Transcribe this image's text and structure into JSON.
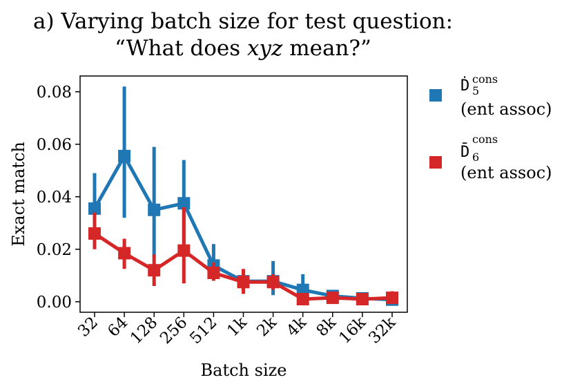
{
  "chart_data": {
    "type": "line",
    "title_line1": "a) Varying batch size for test question:",
    "title_line2_pre": "“What does ",
    "title_line2_var": "xyz",
    "title_line2_post": " mean?”",
    "xlabel": "Batch size",
    "ylabel": "Exact match",
    "categories": [
      "32",
      "64",
      "128",
      "256",
      "512",
      "1k",
      "2k",
      "4k",
      "8k",
      "16k",
      "32k"
    ],
    "ylim": [
      -0.004,
      0.086
    ],
    "yticks": [
      0.0,
      0.02,
      0.04,
      0.06,
      0.08
    ],
    "ytick_labels": [
      "0.00",
      "0.02",
      "0.04",
      "0.06",
      "0.08"
    ],
    "grid": false,
    "legend_position": "outside-right",
    "series": [
      {
        "name": "D5 cons (ent assoc)",
        "legend_symbol": "Ḋ",
        "legend_sub": "5",
        "legend_sup": "cons",
        "legend_text": "(ent assoc)",
        "color": "#1f77b4",
        "values": [
          0.0355,
          0.0555,
          0.035,
          0.0375,
          0.0138,
          0.0078,
          0.0078,
          0.0045,
          0.0022,
          0.0013,
          0.0008
        ],
        "err_low": [
          0.022,
          0.032,
          0.017,
          0.021,
          0.008,
          0.004,
          0.0025,
          0.001,
          0.0008,
          0.0003,
          0.0002
        ],
        "err_high": [
          0.049,
          0.082,
          0.059,
          0.054,
          0.022,
          0.012,
          0.0155,
          0.0105,
          0.0035,
          0.0025,
          0.0018
        ]
      },
      {
        "name": "D6 cons (ent assoc)",
        "legend_symbol": "D̄",
        "legend_sub": "6",
        "legend_sup": "cons",
        "legend_text": "(ent assoc)",
        "color": "#d62728",
        "values": [
          0.026,
          0.0185,
          0.012,
          0.0195,
          0.011,
          0.0075,
          0.0075,
          0.001,
          0.0015,
          0.001,
          0.0015
        ],
        "err_low": [
          0.02,
          0.0125,
          0.006,
          0.007,
          0.008,
          0.003,
          0.0045,
          0.0,
          0.0005,
          0.0003,
          0.0003
        ],
        "err_high": [
          0.034,
          0.024,
          0.018,
          0.036,
          0.015,
          0.0125,
          0.0105,
          0.002,
          0.003,
          0.002,
          0.004
        ]
      }
    ]
  }
}
